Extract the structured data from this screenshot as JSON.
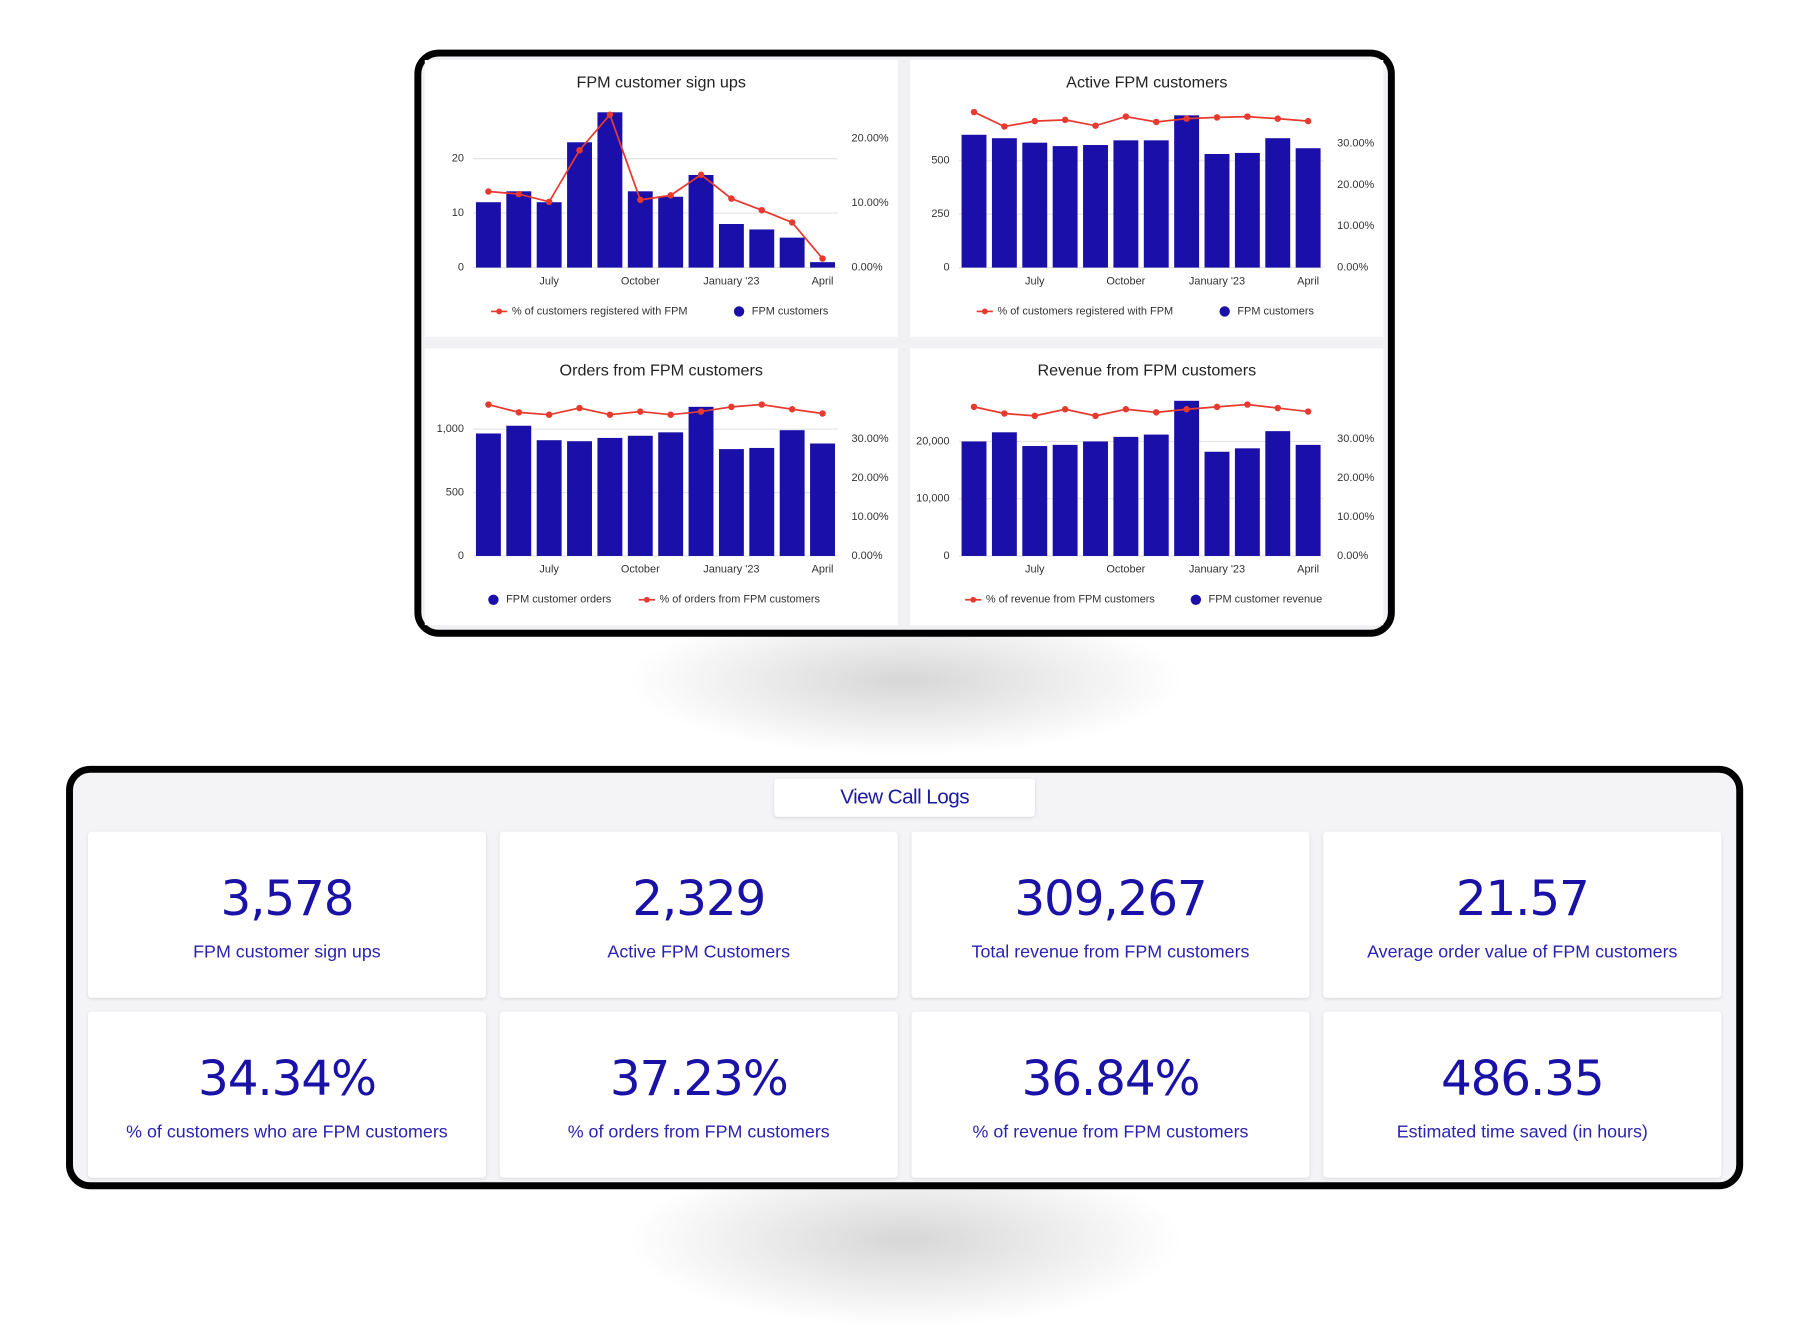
{
  "chart_data": [
    {
      "type": "bar",
      "title": "FPM customer sign ups",
      "categories": [
        null,
        null,
        "July",
        null,
        null,
        "October",
        null,
        null,
        "January '23",
        null,
        null,
        "April"
      ],
      "series": [
        {
          "name": "% of customers registered with FPM",
          "type": "line",
          "axis": "y2",
          "color": "#e8392f",
          "values": [
            11.8,
            11.4,
            10.2,
            18.2,
            23.7,
            10.5,
            11.2,
            14.4,
            10.7,
            8.9,
            7.0,
            1.4
          ]
        },
        {
          "name": "FPM customers",
          "type": "bar",
          "color": "#1a0fa8",
          "values": [
            12,
            14,
            12,
            23,
            28.5,
            14,
            13,
            17,
            8,
            7,
            5.5,
            1
          ]
        }
      ],
      "ylim": [
        0,
        29
      ],
      "yticks": [
        0,
        10,
        20
      ],
      "y2lim": [
        0,
        24.5
      ],
      "y2ticks": [
        {
          "value": 0,
          "label": "0.00%"
        },
        {
          "value": 10,
          "label": "10.00%"
        },
        {
          "value": 20,
          "label": "20.00%"
        }
      ],
      "grid": true
    },
    {
      "type": "bar",
      "title": "Active FPM customers",
      "categories": [
        null,
        null,
        "July",
        null,
        null,
        "October",
        null,
        null,
        "January '23",
        null,
        null,
        "April"
      ],
      "series": [
        {
          "name": "% of customers registered with FPM",
          "type": "line",
          "axis": "y2",
          "color": "#e8392f",
          "values": [
            37.7,
            34.2,
            35.5,
            35.8,
            34.4,
            36.6,
            35.3,
            36.1,
            36.4,
            36.6,
            36.1,
            35.5
          ]
        },
        {
          "name": "FPM customers",
          "type": "bar",
          "color": "#1a0fa8",
          "values": [
            622,
            606,
            585,
            569,
            574,
            596,
            596,
            713,
            532,
            537,
            606,
            559
          ]
        }
      ],
      "ylim": [
        0,
        740
      ],
      "yticks": [
        0,
        250,
        500
      ],
      "y2lim": [
        0,
        38.3
      ],
      "y2ticks": [
        {
          "value": 0,
          "label": "0.00%"
        },
        {
          "value": 10,
          "label": "10.00%"
        },
        {
          "value": 20,
          "label": "20.00%"
        },
        {
          "value": 30,
          "label": "30.00%"
        }
      ],
      "grid": true
    },
    {
      "type": "bar",
      "title": "Orders from FPM customers",
      "categories": [
        null,
        null,
        "July",
        null,
        null,
        "October",
        null,
        null,
        "January '23",
        null,
        null,
        "April"
      ],
      "series": [
        {
          "name": "FPM customer orders",
          "type": "bar",
          "color": "#1a0fa8",
          "values": [
            965,
            1026,
            912,
            904,
            930,
            947,
            974,
            1175,
            842,
            851,
            991,
            886
          ]
        },
        {
          "name": "% of orders from FPM customers",
          "type": "line",
          "axis": "y2",
          "color": "#e8392f",
          "values": [
            38.9,
            36.9,
            36.3,
            38.0,
            36.3,
            37.1,
            36.3,
            37.1,
            38.3,
            38.9,
            37.7,
            36.6
          ]
        }
      ],
      "ylim": [
        0,
        1245
      ],
      "yticks": [
        0,
        500,
        {
          "value": 1000,
          "label": "1,000"
        }
      ],
      "y2lim": [
        0,
        40.6
      ],
      "y2ticks": [
        {
          "value": 0,
          "label": "0.00%"
        },
        {
          "value": 10,
          "label": "10.00%"
        },
        {
          "value": 20,
          "label": "20.00%"
        },
        {
          "value": 30,
          "label": "30.00%"
        }
      ],
      "grid": true
    },
    {
      "type": "bar",
      "title": "Revenue from FPM customers",
      "categories": [
        null,
        null,
        "July",
        null,
        null,
        "October",
        null,
        null,
        "January '23",
        null,
        null,
        "April"
      ],
      "series": [
        {
          "name": "% of revenue from FPM customers",
          "type": "line",
          "axis": "y2",
          "color": "#e8392f",
          "values": [
            38.3,
            36.6,
            36.0,
            37.7,
            36.0,
            37.7,
            36.9,
            37.7,
            38.3,
            38.9,
            38.0,
            37.1
          ]
        },
        {
          "name": "FPM customer revenue",
          "type": "bar",
          "color": "#1a0fa8",
          "values": [
            20000,
            21600,
            19200,
            19400,
            20000,
            20800,
            21200,
            27100,
            18200,
            18800,
            21800,
            19400
          ]
        }
      ],
      "ylim": [
        0,
        27600
      ],
      "yticks": [
        0,
        {
          "value": 10000,
          "label": "10,000"
        },
        {
          "value": 20000,
          "label": "20,000"
        }
      ],
      "y2lim": [
        0,
        40.6
      ],
      "y2ticks": [
        {
          "value": 0,
          "label": "0.00%"
        },
        {
          "value": 10,
          "label": "10.00%"
        },
        {
          "value": 20,
          "label": "20.00%"
        },
        {
          "value": 30,
          "label": "30.00%"
        }
      ],
      "grid": true
    }
  ],
  "button": {
    "label": "View Call Logs"
  },
  "kpis": [
    {
      "value": "3,578",
      "label": "FPM customer sign ups"
    },
    {
      "value": "2,329",
      "label": "Active FPM Customers"
    },
    {
      "value": "309,267",
      "label": "Total revenue from FPM customers"
    },
    {
      "value": "21.57",
      "label": "Average order value of FPM customers"
    },
    {
      "value": "34.34%",
      "label": "% of customers who are FPM customers"
    },
    {
      "value": "37.23%",
      "label": "% of orders from FPM customers"
    },
    {
      "value": "36.84%",
      "label": "% of revenue from FPM customers"
    },
    {
      "value": "486.35",
      "label": "Estimated time saved (in hours)"
    }
  ]
}
